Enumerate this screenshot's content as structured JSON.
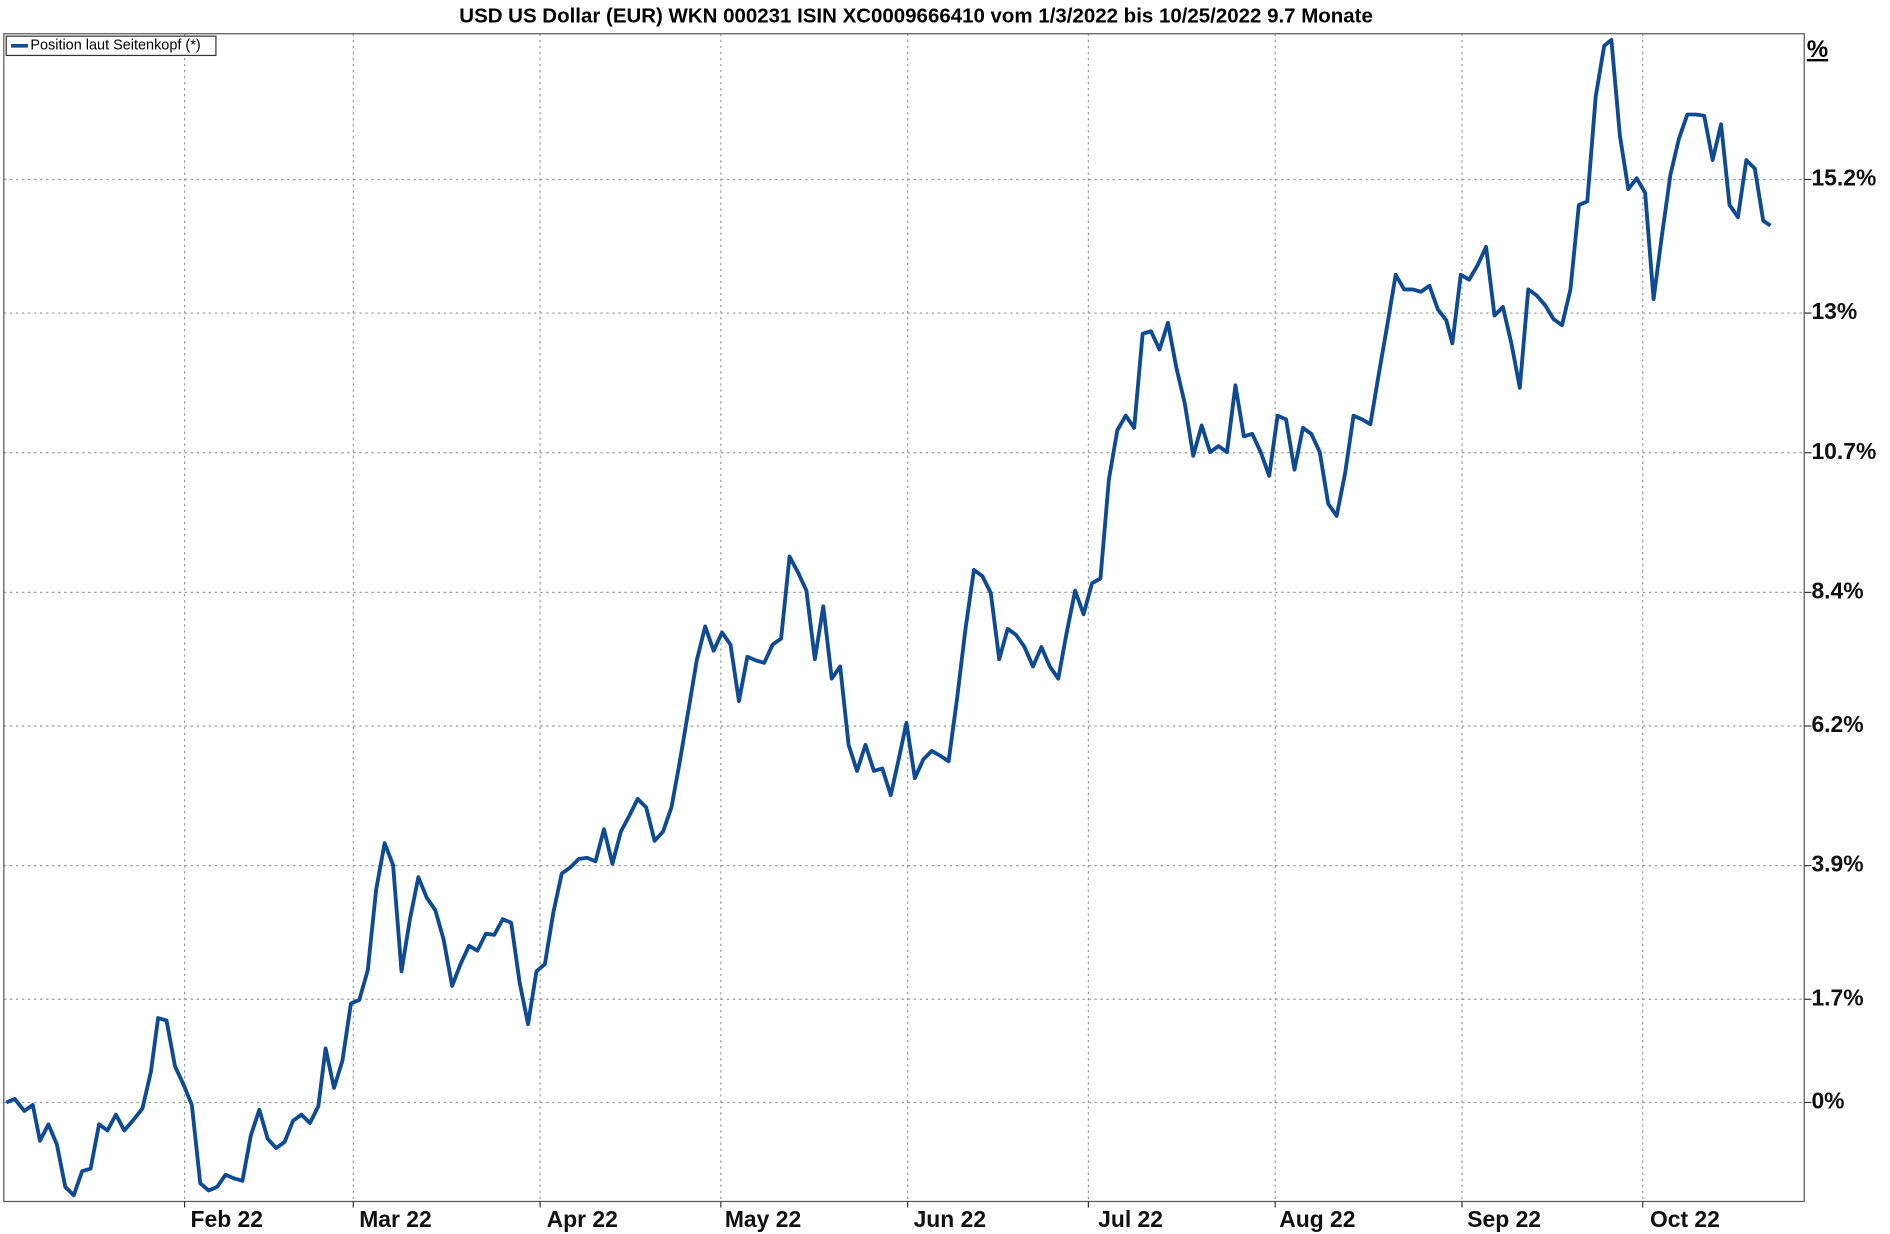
{
  "chart_data": {
    "type": "line",
    "title": "USD US Dollar (EUR) WKN 000231 ISIN XC0009666410 vom 1/3/2022 bis 10/25/2022 9.7 Monate",
    "y_unit": "%",
    "grid": true,
    "legend": "top-left",
    "xlim": [
      2,
      300.8
    ],
    "ylim": [
      -1.63,
      17.6
    ],
    "xticks": [
      {
        "value": 32,
        "label": "Feb 22"
      },
      {
        "value": 60,
        "label": "Mar 22"
      },
      {
        "value": 91,
        "label": "Apr 22"
      },
      {
        "value": 121,
        "label": "May 22"
      },
      {
        "value": 152,
        "label": "Jun 22"
      },
      {
        "value": 182,
        "label": "Jul 22"
      },
      {
        "value": 213,
        "label": "Aug 22"
      },
      {
        "value": 244,
        "label": "Sep 22"
      },
      {
        "value": 274,
        "label": "Oct 22"
      }
    ],
    "yticks": [
      {
        "value": 0,
        "label": "0%"
      },
      {
        "value": 1.7,
        "label": "1.7%"
      },
      {
        "value": 3.9,
        "label": "3.9%"
      },
      {
        "value": 6.2,
        "label": "6.2%"
      },
      {
        "value": 8.4,
        "label": "8.4%"
      },
      {
        "value": 10.7,
        "label": "10.7%"
      },
      {
        "value": 13,
        "label": "13%"
      },
      {
        "value": 15.2,
        "label": "15.2%"
      }
    ],
    "x": [
      2.4,
      3.8,
      5.4,
      6.8,
      8,
      9.4,
      10.8,
      12.2,
      13.6,
      15,
      16.4,
      17.8,
      19.2,
      20.6,
      22,
      23.4,
      25,
      26.4,
      27.6,
      29,
      30.4,
      31.8,
      33.2,
      34.6,
      36,
      37.4,
      38.8,
      40.2,
      41.6,
      43,
      44.4,
      45.8,
      47.2,
      48.6,
      50,
      51.4,
      52.8,
      54.2,
      55.4,
      56.8,
      58.2,
      59.6,
      61,
      62.4,
      63.8,
      65.2,
      66.6,
      68,
      69.4,
      70.8,
      72.2,
      73.6,
      75,
      76.4,
      77.8,
      79.2,
      80.6,
      82,
      83.4,
      84.8,
      86.2,
      87.6,
      89,
      90.4,
      91.8,
      93.2,
      94.6,
      96,
      97.4,
      98.8,
      100.2,
      101.6,
      103,
      104.4,
      105.8,
      107.2,
      108.6,
      110,
      111.4,
      112.8,
      114.2,
      115.6,
      117,
      118.4,
      119.8,
      121.2,
      122.6,
      124,
      125.4,
      126.8,
      128.2,
      129.6,
      131,
      132.4,
      133.8,
      135.2,
      136.6,
      138,
      139.4,
      140.8,
      142.2,
      143.6,
      145,
      146.4,
      147.8,
      149.2,
      150.6,
      151.8,
      153.2,
      154.6,
      156,
      157.4,
      158.8,
      160.2,
      161.6,
      163,
      164.4,
      165.8,
      167.2,
      168.6,
      170,
      171.4,
      172.8,
      174.2,
      175.6,
      177,
      178.4,
      179.8,
      181.2,
      182.6,
      184,
      185.4,
      186.8,
      188.2,
      189.6,
      191,
      192.4,
      193.8,
      195.2,
      196.6,
      198,
      199.4,
      200.8,
      202.2,
      203.6,
      205,
      206.4,
      207.8,
      209.2,
      210.6,
      212,
      213.4,
      214.8,
      216.2,
      217.6,
      219,
      220.4,
      221.8,
      223.2,
      224.6,
      226,
      227.4,
      228.8,
      230.2,
      231.6,
      233,
      234.4,
      235.8,
      237.2,
      238.6,
      240,
      241.4,
      242.4,
      243.8,
      245.2,
      246.6,
      248,
      249.4,
      250.8,
      252.2,
      253.6,
      255,
      256.4,
      257.8,
      259.2,
      260.6,
      262,
      263.4,
      264.8,
      266.2,
      267.6,
      268.8,
      270.2,
      271.6,
      273,
      274.4,
      275.8,
      277.2,
      278.6,
      280,
      281.4,
      282.8,
      284.2,
      285.6,
      287,
      288.4,
      289.8,
      291.2,
      292.6,
      294,
      295.2
    ],
    "series": [
      {
        "name": "Position laut Seitenkopf (*)",
        "color": "#0e4b92",
        "values": [
          0,
          0.06,
          -0.14,
          -0.04,
          -0.63,
          -0.36,
          -0.69,
          -1.39,
          -1.53,
          -1.13,
          -1.09,
          -0.36,
          -0.46,
          -0.2,
          -0.46,
          -0.3,
          -0.1,
          0.5,
          1.39,
          1.35,
          0.6,
          0.3,
          -0.04,
          -1.33,
          -1.45,
          -1.39,
          -1.19,
          -1.25,
          -1.29,
          -0.54,
          -0.12,
          -0.6,
          -0.75,
          -0.65,
          -0.3,
          -0.2,
          -0.34,
          -0.06,
          0.89,
          0.24,
          0.69,
          1.63,
          1.69,
          2.18,
          3.51,
          4.27,
          3.91,
          2.16,
          3.02,
          3.71,
          3.37,
          3.17,
          2.68,
          1.92,
          2.28,
          2.58,
          2.5,
          2.78,
          2.76,
          3.02,
          2.96,
          1.98,
          1.29,
          2.16,
          2.28,
          3.13,
          3.77,
          3.87,
          4.01,
          4.03,
          3.97,
          4.5,
          3.93,
          4.46,
          4.72,
          5,
          4.86,
          4.31,
          4.46,
          4.86,
          5.62,
          6.45,
          7.28,
          7.84,
          7.44,
          7.74,
          7.54,
          6.61,
          7.34,
          7.28,
          7.24,
          7.54,
          7.64,
          8.99,
          8.73,
          8.43,
          7.3,
          8.17,
          6.98,
          7.18,
          5.89,
          5.46,
          5.89,
          5.46,
          5.5,
          5.06,
          5.69,
          6.25,
          5.34,
          5.65,
          5.79,
          5.71,
          5.62,
          6.65,
          7.8,
          8.77,
          8.67,
          8.39,
          7.3,
          7.8,
          7.7,
          7.5,
          7.18,
          7.5,
          7.18,
          6.98,
          7.74,
          8.43,
          8.04,
          8.55,
          8.63,
          10.26,
          11.07,
          11.31,
          11.11,
          12.66,
          12.7,
          12.4,
          12.84,
          12.1,
          11.51,
          10.65,
          11.15,
          10.71,
          10.81,
          10.71,
          11.81,
          10.97,
          11.01,
          10.71,
          10.32,
          11.31,
          11.25,
          10.42,
          11.11,
          11.01,
          10.71,
          9.86,
          9.66,
          10.36,
          11.31,
          11.25,
          11.17,
          12,
          12.8,
          13.63,
          13.39,
          13.39,
          13.35,
          13.45,
          13.06,
          12.88,
          12.5,
          13.63,
          13.55,
          13.79,
          14.09,
          12.96,
          13.1,
          12.5,
          11.77,
          13.39,
          13.29,
          13.13,
          12.9,
          12.8,
          13.39,
          14.78,
          14.84,
          16.57,
          17.4,
          17.5,
          15.93,
          15.04,
          15.22,
          14.98,
          13.23,
          14.29,
          15.28,
          15.87,
          16.27,
          16.27,
          16.25,
          15.52,
          16.11,
          14.78,
          14.58,
          15.52,
          15.38,
          14.52,
          14.44
        ]
      }
    ]
  }
}
